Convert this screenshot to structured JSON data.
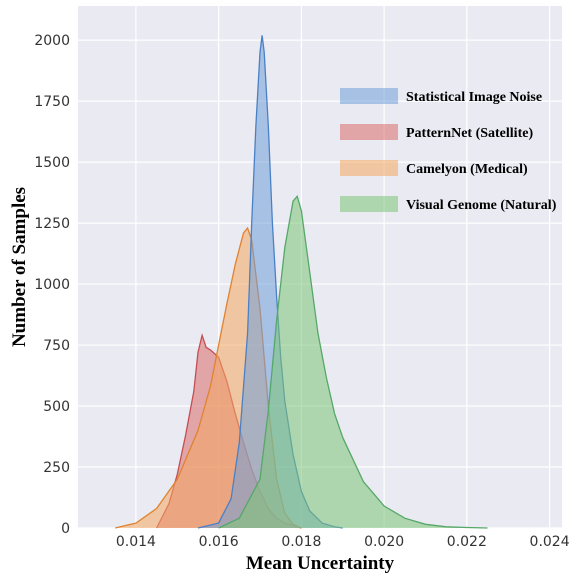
{
  "chart_data": {
    "type": "area",
    "title": "",
    "xlabel": "Mean Uncertainty",
    "ylabel": "Number of Samples",
    "xlim": [
      0.0126,
      0.0243
    ],
    "ylim": [
      0,
      2140
    ],
    "xticks": [
      "0.014",
      "0.016",
      "0.018",
      "0.020",
      "0.022",
      "0.024"
    ],
    "xtick_values": [
      0.014,
      0.016,
      0.018,
      0.02,
      0.022,
      0.024
    ],
    "yticks": [
      "0",
      "250",
      "500",
      "750",
      "1000",
      "1250",
      "1500",
      "1750",
      "2000"
    ],
    "ytick_values": [
      0,
      250,
      500,
      750,
      1000,
      1250,
      1500,
      1750,
      2000
    ],
    "grid": true,
    "legend_position": "top-right",
    "series": [
      {
        "name": "Statistical Image Noise",
        "color": "#6f9fd8",
        "edge": "#4a80c4",
        "x": [
          0.0155,
          0.016,
          0.0163,
          0.0165,
          0.0167,
          0.0168,
          0.0169,
          0.017,
          0.01705,
          0.0171,
          0.0172,
          0.0173,
          0.0174,
          0.0175,
          0.0176,
          0.0178,
          0.018,
          0.0182,
          0.0185,
          0.0188,
          0.019
        ],
        "values": [
          0,
          20,
          120,
          350,
          800,
          1250,
          1650,
          1950,
          2020,
          1950,
          1650,
          1250,
          950,
          700,
          520,
          300,
          150,
          70,
          20,
          5,
          0
        ]
      },
      {
        "name": "PatternNet (Satellite)",
        "color": "#d96b6b",
        "edge": "#c44e52",
        "x": [
          0.0145,
          0.0148,
          0.015,
          0.0152,
          0.0154,
          0.0155,
          0.0156,
          0.0157,
          0.0158,
          0.016,
          0.0162,
          0.0164,
          0.0166,
          0.0168,
          0.017,
          0.0172,
          0.0174,
          0.0176,
          0.0178,
          0.018
        ],
        "values": [
          0,
          100,
          220,
          380,
          560,
          720,
          790,
          740,
          730,
          700,
          600,
          470,
          350,
          240,
          150,
          80,
          40,
          20,
          10,
          0
        ]
      },
      {
        "name": "Camelyon (Medical)",
        "color": "#f4a760",
        "edge": "#e0822f",
        "x": [
          0.0135,
          0.014,
          0.0145,
          0.015,
          0.0155,
          0.0158,
          0.016,
          0.0162,
          0.0164,
          0.0166,
          0.0167,
          0.0168,
          0.017,
          0.0172,
          0.0174,
          0.0176,
          0.0178,
          0.018
        ],
        "values": [
          0,
          20,
          80,
          200,
          400,
          580,
          750,
          920,
          1080,
          1210,
          1230,
          1180,
          900,
          500,
          200,
          60,
          15,
          0
        ]
      },
      {
        "name": "Visual Genome (Natural)",
        "color": "#7cc576",
        "edge": "#55a868",
        "x": [
          0.016,
          0.0165,
          0.017,
          0.0172,
          0.0174,
          0.0176,
          0.0178,
          0.0179,
          0.018,
          0.0182,
          0.0184,
          0.0186,
          0.0188,
          0.019,
          0.0195,
          0.02,
          0.0205,
          0.021,
          0.0215,
          0.022,
          0.0225
        ],
        "values": [
          0,
          40,
          200,
          480,
          850,
          1150,
          1340,
          1360,
          1300,
          1050,
          800,
          620,
          470,
          370,
          190,
          90,
          40,
          15,
          5,
          2,
          0
        ]
      }
    ]
  }
}
